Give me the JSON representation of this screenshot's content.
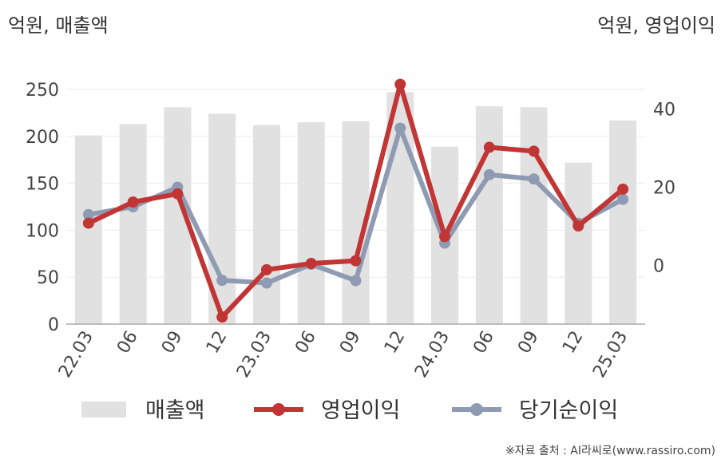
{
  "left_unit": "억원, 매출액",
  "right_unit": "억원, 영업이익",
  "source": "※자료 출처 : AI라씨로(www.rassiro.com)",
  "colors": {
    "bar": "#e1e1e1",
    "operating": "#c23535",
    "net": "#8f9bb3",
    "axis": "#aaaaaa",
    "grid": "#ebebeb"
  },
  "chart_data": {
    "type": "bar+line",
    "categories": [
      "22.03",
      "06",
      "09",
      "12",
      "23.03",
      "06",
      "09",
      "12",
      "24.03",
      "06",
      "09",
      "12",
      "25.03"
    ],
    "left_axis": {
      "min": 0,
      "max": 250,
      "ticks": [
        "0",
        "50",
        "100",
        "150",
        "200",
        "250"
      ]
    },
    "right_axis": {
      "min": -15,
      "max": 45,
      "ticks": [
        "0",
        "20",
        "40"
      ]
    },
    "grid": true,
    "legend_position": "bottom",
    "series": [
      {
        "name": "매출액",
        "type": "bar",
        "axis": "left",
        "values": [
          201,
          213,
          231,
          224,
          212,
          215,
          216,
          247,
          189,
          232,
          231,
          172,
          217
        ]
      },
      {
        "name": "영업이익",
        "type": "line",
        "axis": "right",
        "values": [
          10.8,
          16.2,
          18.3,
          -13.2,
          -1.1,
          0.5,
          1.2,
          46.3,
          7.4,
          30.2,
          29.2,
          10.1,
          19.5
        ]
      },
      {
        "name": "당기순이익",
        "type": "line",
        "axis": "right",
        "values": [
          13.0,
          15.0,
          20.0,
          -3.8,
          -4.5,
          0.3,
          -3.9,
          35.1,
          5.7,
          23.2,
          22.1,
          10.8,
          16.9
        ]
      }
    ]
  }
}
